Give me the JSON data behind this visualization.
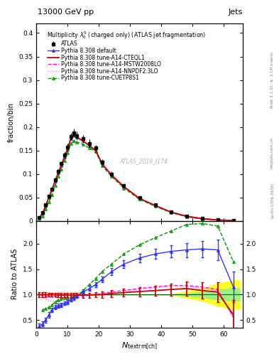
{
  "title_top": "13000 GeV pp",
  "title_right": "Jets",
  "plot_title": "Multiplicity $\\lambda_0^0$ (charged only) (ATLAS jet fragmentation)",
  "xlabel": "$N_{\\mathrm{textrm{[ch]}}}$",
  "ylabel_main": "fraction/bin",
  "ylabel_ratio": "Ratio to ATLAS",
  "watermark": "ATLAS_2019_I174...",
  "atlas_x": [
    1,
    2,
    3,
    4,
    5,
    6,
    7,
    8,
    9,
    10,
    11,
    12,
    13,
    15,
    17,
    19,
    21,
    24,
    28,
    33,
    38,
    43,
    48,
    53,
    58,
    63
  ],
  "atlas_y": [
    0.008,
    0.018,
    0.035,
    0.052,
    0.068,
    0.088,
    0.105,
    0.122,
    0.14,
    0.157,
    0.18,
    0.188,
    0.182,
    0.175,
    0.165,
    0.155,
    0.125,
    0.1,
    0.075,
    0.05,
    0.035,
    0.02,
    0.01,
    0.005,
    0.002,
    0.001
  ],
  "atlas_yerr": [
    0.001,
    0.002,
    0.003,
    0.003,
    0.003,
    0.004,
    0.005,
    0.005,
    0.006,
    0.007,
    0.008,
    0.009,
    0.008,
    0.008,
    0.008,
    0.007,
    0.006,
    0.005,
    0.004,
    0.003,
    0.002,
    0.002,
    0.001,
    0.001,
    0.0005,
    0.0003
  ],
  "py_def_x": [
    1,
    2,
    3,
    4,
    5,
    6,
    7,
    8,
    9,
    10,
    11,
    12,
    13,
    15,
    17,
    19,
    21,
    24,
    28,
    33,
    38,
    43,
    48,
    53,
    58,
    63
  ],
  "py_def_y": [
    0.007,
    0.016,
    0.032,
    0.05,
    0.066,
    0.085,
    0.102,
    0.118,
    0.136,
    0.153,
    0.175,
    0.183,
    0.178,
    0.17,
    0.16,
    0.15,
    0.122,
    0.098,
    0.073,
    0.048,
    0.033,
    0.019,
    0.01,
    0.005,
    0.002,
    0.001
  ],
  "py_cteq_x": [
    1,
    2,
    3,
    4,
    5,
    6,
    7,
    8,
    9,
    10,
    11,
    12,
    13,
    15,
    17,
    19,
    21,
    24,
    28,
    33,
    38,
    43,
    48,
    53,
    58,
    63
  ],
  "py_cteq_y": [
    0.007,
    0.016,
    0.032,
    0.05,
    0.066,
    0.085,
    0.102,
    0.118,
    0.136,
    0.153,
    0.175,
    0.183,
    0.178,
    0.17,
    0.16,
    0.15,
    0.122,
    0.098,
    0.073,
    0.048,
    0.033,
    0.019,
    0.01,
    0.005,
    0.002,
    0.001
  ],
  "py_mstw_x": [
    1,
    2,
    3,
    4,
    5,
    6,
    7,
    8,
    9,
    10,
    11,
    12,
    13,
    15,
    17,
    19,
    21,
    24,
    28,
    33,
    38,
    43,
    48,
    53,
    58,
    63
  ],
  "py_mstw_y": [
    0.007,
    0.016,
    0.032,
    0.05,
    0.066,
    0.085,
    0.102,
    0.118,
    0.136,
    0.153,
    0.175,
    0.183,
    0.178,
    0.17,
    0.16,
    0.15,
    0.122,
    0.098,
    0.073,
    0.048,
    0.033,
    0.019,
    0.01,
    0.005,
    0.002,
    0.001
  ],
  "py_nnpdf_x": [
    1,
    2,
    3,
    4,
    5,
    6,
    7,
    8,
    9,
    10,
    11,
    12,
    13,
    15,
    17,
    19,
    21,
    24,
    28,
    33,
    38,
    43,
    48,
    53,
    58,
    63
  ],
  "py_nnpdf_y": [
    0.007,
    0.016,
    0.032,
    0.05,
    0.066,
    0.085,
    0.102,
    0.118,
    0.136,
    0.153,
    0.175,
    0.183,
    0.178,
    0.17,
    0.16,
    0.15,
    0.122,
    0.098,
    0.073,
    0.048,
    0.033,
    0.019,
    0.01,
    0.005,
    0.002,
    0.001
  ],
  "py_cuetp_x": [
    1,
    2,
    3,
    4,
    5,
    6,
    7,
    8,
    9,
    10,
    11,
    12,
    13,
    15,
    17,
    19,
    21,
    24,
    28,
    33,
    38,
    43,
    48,
    53,
    58,
    63
  ],
  "py_cuetp_y": [
    0.003,
    0.01,
    0.025,
    0.04,
    0.055,
    0.075,
    0.095,
    0.11,
    0.128,
    0.145,
    0.165,
    0.17,
    0.168,
    0.163,
    0.155,
    0.148,
    0.118,
    0.095,
    0.07,
    0.046,
    0.031,
    0.018,
    0.009,
    0.004,
    0.002,
    0.001
  ],
  "rat_def_x": [
    1,
    2,
    3,
    4,
    5,
    6,
    7,
    8,
    9,
    10,
    11,
    12,
    13,
    15,
    17,
    19,
    21,
    24,
    28,
    33,
    38,
    43,
    48,
    53,
    58,
    63
  ],
  "rat_def_y": [
    0.38,
    0.42,
    0.5,
    0.6,
    0.7,
    0.75,
    0.78,
    0.8,
    0.83,
    0.85,
    0.9,
    0.93,
    0.97,
    1.05,
    1.12,
    1.2,
    1.3,
    1.45,
    1.6,
    1.72,
    1.8,
    1.85,
    1.88,
    1.9,
    1.88,
    1.15
  ],
  "rat_def_yerr": [
    0.05,
    0.05,
    0.05,
    0.05,
    0.04,
    0.04,
    0.04,
    0.04,
    0.04,
    0.04,
    0.04,
    0.04,
    0.04,
    0.05,
    0.05,
    0.05,
    0.06,
    0.07,
    0.08,
    0.09,
    0.1,
    0.12,
    0.14,
    0.16,
    0.2,
    0.3
  ],
  "rat_cteq_x": [
    1,
    2,
    3,
    4,
    5,
    6,
    7,
    8,
    9,
    10,
    11,
    12,
    13,
    15,
    17,
    19,
    21,
    24,
    28,
    33,
    38,
    43,
    48,
    53,
    58,
    63
  ],
  "rat_cteq_y": [
    1.0,
    1.0,
    1.0,
    1.0,
    1.0,
    1.0,
    0.99,
    0.99,
    0.99,
    0.99,
    0.99,
    0.99,
    0.99,
    0.99,
    0.99,
    1.0,
    1.0,
    1.02,
    1.04,
    1.06,
    1.08,
    1.1,
    1.12,
    1.08,
    1.05,
    0.6
  ],
  "rat_cteq_yerr": [
    0.05,
    0.05,
    0.05,
    0.04,
    0.04,
    0.04,
    0.04,
    0.04,
    0.04,
    0.04,
    0.04,
    0.04,
    0.04,
    0.05,
    0.05,
    0.05,
    0.06,
    0.07,
    0.08,
    0.09,
    0.1,
    0.12,
    0.14,
    0.16,
    0.2,
    0.3
  ],
  "rat_mstw_x": [
    1,
    2,
    3,
    4,
    5,
    6,
    7,
    8,
    9,
    10,
    11,
    12,
    13,
    15,
    17,
    19,
    21,
    24,
    28,
    33,
    38,
    43,
    48,
    53,
    58,
    63
  ],
  "rat_mstw_y": [
    1.0,
    0.98,
    0.97,
    0.96,
    0.95,
    0.95,
    0.94,
    0.94,
    0.94,
    0.95,
    0.95,
    0.96,
    0.97,
    0.98,
    0.99,
    1.0,
    1.02,
    1.05,
    1.08,
    1.12,
    1.15,
    1.18,
    1.18,
    1.15,
    1.1,
    0.55
  ],
  "rat_nnpdf_x": [
    1,
    2,
    3,
    4,
    5,
    6,
    7,
    8,
    9,
    10,
    11,
    12,
    13,
    15,
    17,
    19,
    21,
    24,
    28,
    33,
    38,
    43,
    48,
    53,
    58,
    63
  ],
  "rat_nnpdf_y": [
    1.0,
    0.95,
    0.9,
    0.88,
    0.87,
    0.87,
    0.87,
    0.88,
    0.89,
    0.9,
    0.91,
    0.92,
    0.94,
    0.96,
    0.97,
    0.99,
    1.01,
    1.04,
    1.07,
    1.1,
    1.13,
    1.16,
    1.16,
    1.12,
    1.08,
    0.55
  ],
  "rat_cuetp_x": [
    2,
    3,
    4,
    5,
    6,
    7,
    8,
    9,
    10,
    11,
    12,
    13,
    15,
    17,
    19,
    21,
    24,
    28,
    33,
    38,
    43,
    48,
    53,
    58,
    63
  ],
  "rat_cuetp_y": [
    0.7,
    0.72,
    0.75,
    0.8,
    0.85,
    0.9,
    0.92,
    0.93,
    0.94,
    0.95,
    0.96,
    0.97,
    1.08,
    1.2,
    1.32,
    1.45,
    1.6,
    1.8,
    1.98,
    2.12,
    2.25,
    2.38,
    2.4,
    2.35,
    1.65
  ],
  "band_x": [
    0,
    1,
    2,
    3,
    4,
    5,
    6,
    7,
    8,
    9,
    10,
    11,
    12,
    13,
    15,
    17,
    19,
    21,
    24,
    28,
    33,
    38,
    43,
    48,
    53,
    58,
    63,
    65
  ],
  "band_green_lo": [
    1.0,
    1.0,
    1.0,
    1.0,
    1.0,
    1.0,
    1.0,
    1.0,
    1.0,
    1.0,
    1.0,
    1.0,
    1.0,
    1.0,
    1.0,
    1.0,
    1.0,
    1.0,
    1.0,
    1.0,
    1.0,
    1.0,
    1.0,
    0.98,
    0.95,
    0.9,
    0.88,
    0.88
  ],
  "band_green_hi": [
    1.0,
    1.0,
    1.0,
    1.0,
    1.0,
    1.0,
    1.0,
    1.0,
    1.0,
    1.0,
    1.0,
    1.0,
    1.0,
    1.0,
    1.0,
    1.0,
    1.0,
    1.0,
    1.0,
    1.0,
    1.0,
    1.0,
    1.0,
    1.02,
    1.05,
    1.1,
    1.12,
    1.12
  ],
  "band_yellow_lo": [
    1.0,
    1.0,
    1.0,
    1.0,
    1.0,
    1.0,
    1.0,
    1.0,
    1.0,
    1.0,
    1.0,
    1.0,
    1.0,
    1.0,
    1.0,
    1.0,
    1.0,
    1.0,
    1.0,
    1.0,
    1.0,
    1.0,
    1.0,
    0.94,
    0.88,
    0.78,
    0.72,
    0.72
  ],
  "band_yellow_hi": [
    1.0,
    1.0,
    1.0,
    1.0,
    1.0,
    1.0,
    1.0,
    1.0,
    1.0,
    1.0,
    1.0,
    1.0,
    1.0,
    1.0,
    1.0,
    1.0,
    1.0,
    1.0,
    1.0,
    1.0,
    1.0,
    1.0,
    1.0,
    1.06,
    1.12,
    1.22,
    1.28,
    1.28
  ],
  "color_atlas": "black",
  "color_def": "#3333ff",
  "color_cteq": "#cc0000",
  "color_mstw": "#ff00ff",
  "color_nnpdf": "#ff66ff",
  "color_cuetp": "#009900",
  "xlim": [
    0,
    66
  ],
  "ylim_main": [
    0.0,
    0.42
  ],
  "ylim_ratio": [
    0.35,
    2.45
  ],
  "xticks": [
    0,
    10,
    20,
    30,
    40,
    50,
    60
  ],
  "yticks_main": [
    0.0,
    0.05,
    0.1,
    0.15,
    0.2,
    0.25,
    0.3,
    0.35,
    0.4
  ],
  "yticks_ratio": [
    0.5,
    1.0,
    1.5,
    2.0
  ]
}
